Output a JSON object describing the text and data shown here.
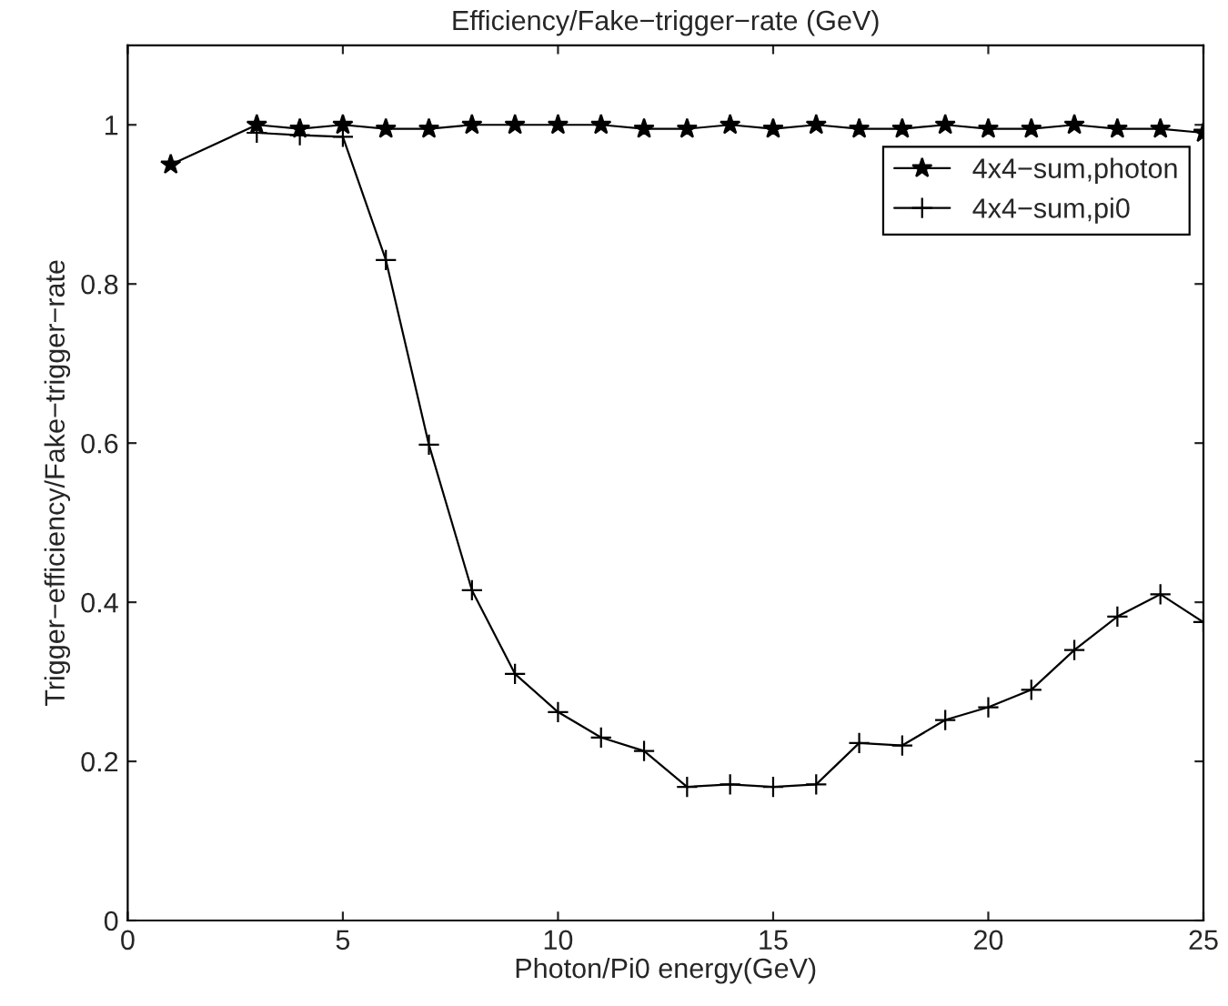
{
  "chart_data": {
    "type": "line",
    "title": "Efficiency/Fake−trigger−rate (GeV)",
    "xlabel": "Photon/Pi0 energy(GeV)",
    "ylabel": "Trigger−efficiency/Fake−trigger−rate",
    "xlim": [
      0,
      25
    ],
    "xticks": [
      0,
      5,
      10,
      15,
      20,
      25
    ],
    "ylim": [
      0,
      1.1
    ],
    "yticks": [
      0,
      0.2,
      0.4,
      0.6,
      0.8,
      1
    ],
    "grid": false,
    "legend": "top right",
    "line_style": "solid",
    "series": [
      {
        "name": "4x4−sum,photon",
        "color": "#000000",
        "marker": "star",
        "x": [
          1,
          3,
          4,
          5,
          6,
          7,
          8,
          9,
          10,
          11,
          12,
          13,
          14,
          15,
          16,
          17,
          18,
          19,
          20,
          21,
          22,
          23,
          24,
          25
        ],
        "values": [
          0.95,
          1.0,
          0.995,
          1.0,
          0.995,
          0.995,
          1.0,
          1.0,
          1.0,
          1.0,
          0.995,
          0.995,
          1.0,
          0.995,
          1.0,
          0.995,
          0.995,
          1.0,
          0.995,
          0.995,
          1.0,
          0.995,
          0.995,
          0.99
        ]
      },
      {
        "name": "4x4−sum,pi0",
        "color": "#000000",
        "marker": "cross",
        "x": [
          3,
          4,
          5,
          6,
          7,
          8,
          9,
          10,
          11,
          12,
          13,
          14,
          15,
          16,
          17,
          18,
          19,
          20,
          21,
          22,
          23,
          24,
          25
        ],
        "values": [
          0.99,
          0.987,
          0.985,
          0.83,
          0.598,
          0.415,
          0.31,
          0.262,
          0.23,
          0.213,
          0.168,
          0.171,
          0.168,
          0.171,
          0.223,
          0.22,
          0.252,
          0.268,
          0.29,
          0.34,
          0.382,
          0.41,
          0.375
        ]
      }
    ]
  }
}
